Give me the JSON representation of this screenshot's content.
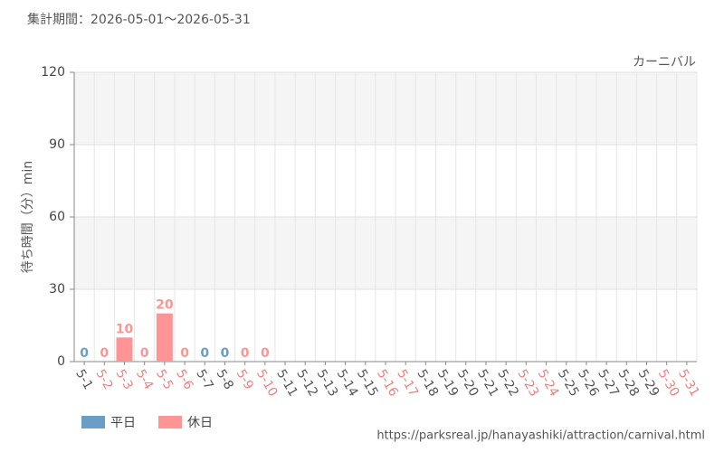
{
  "chart_data": {
    "type": "bar",
    "title": "集計期間：2026-05-01～2026-05-31",
    "subtitle": "カーニバル",
    "y_label": "待ち時間（分）min",
    "source": "https://parksreal.jp/hanayashiki/attraction/carnival.html",
    "categories": [
      "5-1",
      "5-2",
      "5-3",
      "5-4",
      "5-5",
      "5-6",
      "5-7",
      "5-8",
      "5-9",
      "5-10",
      "5-11",
      "5-12",
      "5-13",
      "5-14",
      "5-15",
      "5-16",
      "5-17",
      "5-18",
      "5-19",
      "5-20",
      "5-21",
      "5-22",
      "5-23",
      "5-24",
      "5-25",
      "5-26",
      "5-27",
      "5-28",
      "5-29",
      "5-30",
      "5-31"
    ],
    "category_colors": [
      "#555555",
      "#f08080",
      "#f08080",
      "#f08080",
      "#f08080",
      "#f08080",
      "#555555",
      "#555555",
      "#f08080",
      "#f08080",
      "#555555",
      "#555555",
      "#555555",
      "#555555",
      "#555555",
      "#f08080",
      "#f08080",
      "#555555",
      "#555555",
      "#555555",
      "#555555",
      "#555555",
      "#f08080",
      "#f08080",
      "#555555",
      "#555555",
      "#555555",
      "#555555",
      "#555555",
      "#f08080",
      "#f08080"
    ],
    "series": [
      {
        "name": "平日",
        "color": "#6a9ec6",
        "values": [
          0,
          null,
          null,
          null,
          null,
          null,
          0,
          0,
          null,
          null,
          null,
          null,
          null,
          null,
          null,
          null,
          null,
          null,
          null,
          null,
          null,
          null,
          null,
          null,
          null,
          null,
          null,
          null,
          null,
          null,
          null
        ]
      },
      {
        "name": "休日",
        "color": "#ff9494",
        "values": [
          null,
          0,
          10,
          0,
          20,
          0,
          null,
          null,
          0,
          0,
          null,
          null,
          null,
          null,
          null,
          null,
          null,
          null,
          null,
          null,
          null,
          null,
          null,
          null,
          null,
          null,
          null,
          null,
          null,
          null,
          null
        ]
      }
    ],
    "ylim": [
      0,
      120
    ],
    "yticks": [
      0,
      30,
      60,
      90,
      120
    ],
    "grid": true
  }
}
